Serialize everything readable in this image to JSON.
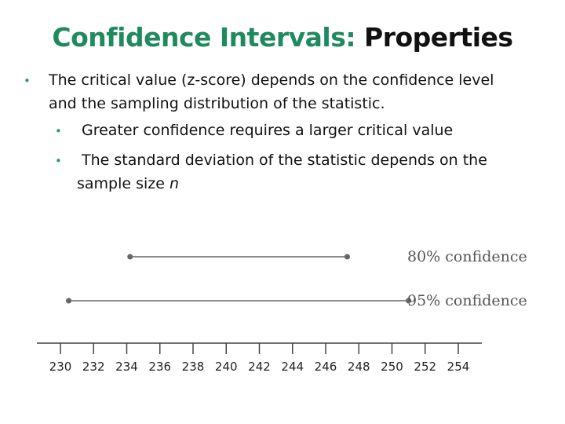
{
  "slide": {
    "title_part1": "Confidence Intervals:",
    "title_part2": "Properties",
    "colors": {
      "title_accent": "#1f8a5e",
      "bullet": "#2e9a6a"
    },
    "bullets": {
      "main_line1": "The critical value (z-score) depends on the confidence level",
      "main_line2": "and the sampling distribution of the statistic.",
      "sub1": "Greater confidence requires a larger critical value",
      "sub2_line1": "The standard deviation of the statistic depends on the",
      "sub2_line2_text": "sample size ",
      "sub2_line2_var": "n"
    }
  },
  "chart_data": {
    "type": "interval",
    "xlim": [
      230,
      254
    ],
    "tick_labels": [
      "230",
      "232",
      "234",
      "236",
      "238",
      "240",
      "242",
      "244",
      "246",
      "248",
      "250",
      "252",
      "254"
    ],
    "tick_values": [
      230,
      232,
      234,
      236,
      238,
      240,
      242,
      244,
      246,
      248,
      250,
      252,
      254
    ],
    "intervals": [
      {
        "name": "80% confidence",
        "low": 234.2,
        "high": 247.3
      },
      {
        "name": "95% confidence",
        "low": 230.5,
        "high": 251.0
      }
    ]
  }
}
